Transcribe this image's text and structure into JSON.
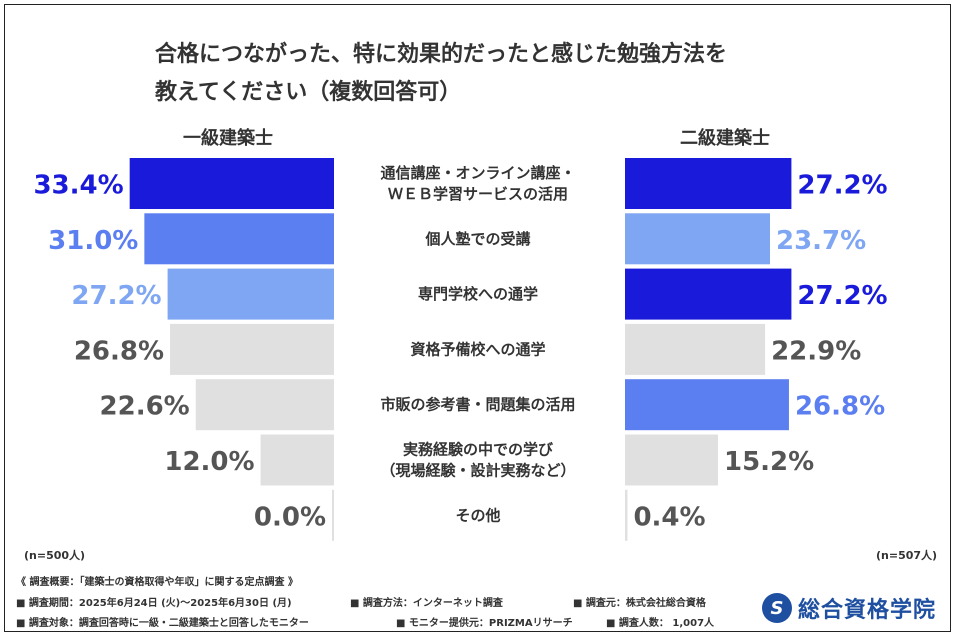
{
  "title_line1": "合格につながった、特に効果的だったと感じた勉強方法を",
  "title_line2": "教えてください（複数回答可）",
  "left_group": "一級建築士",
  "right_group": "二級建築士",
  "left_n": "(n=500人)",
  "right_n": "(n=507人)",
  "footer": {
    "line1": "《 調査概要：「建築士の資格取得や年収」に関する定点調査 》",
    "period": "■ 調査期間：2025年6月24日 (火)〜2025年6月30日 (月)",
    "method": "■ 調査方法：インターネット調査",
    "source": "■ 調査元：株式会社総合資格",
    "target": "■ 調査対象：調査回答時に一級・二級建築士と回答したモニター",
    "provider": "■ モニター提供元：PRIZMAリサーチ",
    "count": "■ 調査人数： 1,007人"
  },
  "logo": {
    "mark": "S",
    "text": "総合資格学院"
  },
  "colors": {
    "rank1": "#1a1adb",
    "rank2": "#5b7ef0",
    "rank3": "#7fa6f2",
    "other": "#e0e0e0",
    "other_text": "#555555"
  },
  "chart_data": {
    "type": "bar",
    "categories": [
      [
        "通信講座・オンライン講座・",
        "ＷＥＢ学習サービスの活用"
      ],
      [
        "個人塾での受講"
      ],
      [
        "専門学校への通学"
      ],
      [
        "資格予備校への通学"
      ],
      [
        "市販の参考書・問題集の活用"
      ],
      [
        "実務経験の中での学び",
        "（現場経験・設計実務など）"
      ],
      [
        "その他"
      ]
    ],
    "series": [
      {
        "name": "一級建築士",
        "values": [
          33.4,
          31.0,
          27.2,
          26.8,
          22.6,
          12.0,
          0.0
        ],
        "labels": [
          "33.4%",
          "31.0%",
          "27.2%",
          "26.8%",
          "22.6%",
          "12.0%",
          "0.0%"
        ],
        "rank": [
          1,
          2,
          3,
          0,
          0,
          0,
          0
        ]
      },
      {
        "name": "二級建築士",
        "values": [
          27.2,
          23.7,
          27.2,
          22.9,
          26.8,
          15.2,
          0.4
        ],
        "labels": [
          "27.2%",
          "23.7%",
          "27.2%",
          "22.9%",
          "26.8%",
          "15.2%",
          "0.4%"
        ],
        "rank": [
          1,
          3,
          1,
          0,
          2,
          0,
          0
        ]
      }
    ],
    "xlim": [
      0,
      34
    ]
  }
}
